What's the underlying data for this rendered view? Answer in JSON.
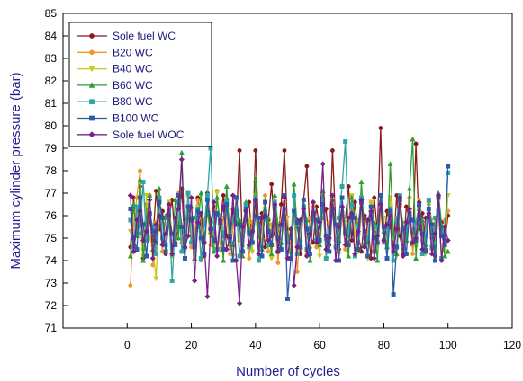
{
  "chart_data": {
    "type": "line",
    "title": "",
    "xlabel": "Number of cycles",
    "ylabel": "Maximum cylinder pressure (bar)",
    "xlim": [
      -20,
      120
    ],
    "ylim": [
      71,
      85
    ],
    "x_ticks": [
      0,
      20,
      40,
      60,
      80,
      100,
      120
    ],
    "y_ticks": [
      71,
      72,
      73,
      74,
      75,
      76,
      77,
      78,
      79,
      80,
      81,
      82,
      83,
      84,
      85
    ],
    "grid": false,
    "legend_position": "top-left",
    "x": [
      1,
      2,
      3,
      4,
      5,
      6,
      7,
      8,
      9,
      10,
      11,
      12,
      13,
      14,
      15,
      16,
      17,
      18,
      19,
      20,
      21,
      22,
      23,
      24,
      25,
      26,
      27,
      28,
      29,
      30,
      31,
      32,
      33,
      34,
      35,
      36,
      37,
      38,
      39,
      40,
      41,
      42,
      43,
      44,
      45,
      46,
      47,
      48,
      49,
      50,
      51,
      52,
      53,
      54,
      55,
      56,
      57,
      58,
      59,
      60,
      61,
      62,
      63,
      64,
      65,
      66,
      67,
      68,
      69,
      70,
      71,
      72,
      73,
      74,
      75,
      76,
      77,
      78,
      79,
      80,
      81,
      82,
      83,
      84,
      85,
      86,
      87,
      88,
      89,
      90,
      91,
      92,
      93,
      94,
      95,
      96,
      97,
      98,
      99,
      100
    ],
    "series": [
      {
        "name": "Sole fuel WC",
        "color": "#8b1a1a",
        "marker": "circle",
        "values": [
          74.6,
          76.8,
          75.2,
          77.3,
          74.1,
          76.5,
          75.8,
          74.9,
          77.1,
          75.4,
          76.2,
          74.3,
          75.9,
          76.7,
          74.8,
          75.5,
          77.2,
          74.6,
          76.1,
          75.3,
          74.9,
          76.8,
          75.6,
          74.2,
          77.0,
          75.7,
          76.4,
          74.5,
          75.8,
          76.9,
          75.1,
          74.7,
          76.3,
          75.6,
          78.9,
          74.4,
          75.9,
          76.6,
          74.8,
          78.9,
          75.3,
          76.1,
          74.6,
          75.8,
          77.4,
          75.2,
          74.9,
          76.5,
          78.9,
          75.4,
          74.6,
          76.2,
          75.8,
          74.3,
          76.7,
          78.2,
          75.1,
          74.8,
          76.4,
          75.5,
          75.9,
          76.3,
          74.7,
          78.9,
          75.6,
          74.5,
          76.1,
          75.8,
          77.3,
          74.9,
          76.6,
          75.2,
          74.4,
          76.0,
          75.7,
          74.1,
          76.8,
          75.3,
          79.9,
          74.8,
          76.2,
          75.5,
          74.6,
          76.9,
          75.1,
          74.3,
          76.4,
          75.8,
          74.7,
          79.2,
          75.4,
          76.1,
          74.5,
          76.6,
          75.0,
          74.2,
          76.3,
          75.7,
          74.8,
          76.0
        ]
      },
      {
        "name": "B20 WC",
        "color": "#f0962a",
        "marker": "circle",
        "values": [
          72.9,
          75.6,
          76.8,
          78.0,
          74.5,
          75.2,
          76.9,
          73.8,
          75.7,
          76.3,
          74.4,
          75.9,
          76.6,
          74.2,
          75.4,
          77.0,
          74.8,
          75.6,
          76.2,
          74.6,
          75.1,
          76.7,
          74.0,
          75.8,
          76.4,
          74.7,
          75.3,
          77.1,
          74.5,
          75.9,
          76.1,
          74.3,
          75.5,
          76.8,
          74.9,
          75.2,
          76.5,
          74.1,
          75.7,
          76.3,
          74.6,
          75.4,
          76.9,
          74.4,
          75.6,
          76.0,
          73.9,
          75.8,
          76.6,
          74.8,
          75.1,
          76.2,
          73.5,
          75.5,
          76.7,
          74.3,
          75.9,
          76.4,
          74.6,
          75.2,
          76.8,
          74.1,
          75.7,
          76.3,
          74.9,
          75.4,
          76.1,
          74.5,
          75.6,
          76.9,
          74.2,
          75.8,
          76.0,
          74.7,
          75.3,
          76.6,
          74.4,
          75.5,
          76.2,
          74.8,
          75.1,
          76.7,
          74.0,
          75.9,
          76.4,
          74.6,
          75.2,
          76.8,
          74.3,
          75.7,
          76.1,
          74.9,
          75.4,
          76.5,
          74.5,
          75.6,
          76.3,
          74.1,
          75.8,
          76.2
        ]
      },
      {
        "name": "B40 WC",
        "color": "#c8c81e",
        "marker": "triangle-down",
        "values": [
          75.3,
          74.8,
          76.1,
          75.5,
          74.2,
          76.9,
          75.0,
          74.6,
          73.2,
          76.3,
          75.8,
          74.4,
          76.6,
          75.2,
          74.9,
          76.0,
          75.6,
          74.1,
          76.8,
          75.3,
          74.7,
          76.4,
          75.9,
          74.3,
          76.2,
          75.1,
          74.8,
          77.0,
          75.4,
          74.5,
          76.5,
          75.7,
          74.2,
          76.7,
          75.0,
          74.6,
          76.1,
          75.8,
          74.4,
          76.9,
          75.3,
          74.9,
          76.3,
          75.6,
          74.1,
          76.6,
          75.2,
          74.7,
          76.0,
          75.9,
          74.3,
          76.8,
          75.4,
          74.8,
          76.2,
          75.1,
          74.5,
          76.5,
          75.7,
          74.2,
          76.4,
          75.0,
          74.9,
          76.7,
          75.5,
          74.3,
          76.1,
          75.8,
          74.6,
          76.9,
          75.2,
          74.4,
          76.3,
          75.6,
          74.1,
          76.6,
          75.3,
          74.7,
          76.0,
          75.9,
          74.5,
          76.8,
          75.1,
          74.2,
          76.4,
          75.7,
          74.8,
          76.2,
          75.0,
          74.6,
          76.7,
          75.4,
          74.3,
          76.5,
          75.8,
          74.9,
          76.1,
          75.5,
          74.4,
          76.9
        ]
      },
      {
        "name": "B60 WC",
        "color": "#2e9e2e",
        "marker": "triangle-up",
        "values": [
          74.2,
          76.5,
          75.1,
          77.6,
          74.0,
          75.8,
          76.9,
          74.5,
          75.3,
          77.2,
          74.8,
          76.0,
          75.6,
          74.3,
          76.7,
          75.0,
          78.8,
          74.6,
          75.9,
          76.4,
          74.1,
          75.5,
          77.0,
          74.9,
          76.2,
          75.3,
          74.4,
          76.8,
          75.7,
          74.0,
          77.3,
          75.2,
          74.7,
          76.1,
          75.8,
          74.2,
          76.6,
          75.4,
          74.9,
          77.6,
          75.1,
          74.5,
          76.3,
          75.9,
          74.3,
          76.9,
          75.6,
          74.8,
          76.0,
          75.2,
          74.1,
          77.4,
          75.5,
          74.6,
          76.5,
          75.8,
          74.0,
          76.2,
          75.3,
          74.7,
          77.1,
          75.0,
          74.4,
          76.7,
          75.6,
          74.9,
          76.1,
          75.4,
          74.2,
          76.8,
          75.9,
          74.5,
          77.5,
          75.1,
          74.8,
          76.4,
          75.7,
          74.0,
          76.9,
          75.3,
          74.6,
          78.3,
          75.2,
          74.3,
          76.6,
          75.5,
          74.9,
          77.2,
          79.4,
          74.1,
          76.3,
          75.8,
          74.7,
          76.0,
          75.4,
          74.4,
          77.0,
          75.6,
          74.2,
          74.4
        ]
      },
      {
        "name": "B80 WC",
        "color": "#2aa6a6",
        "marker": "square",
        "values": [
          75.8,
          74.6,
          76.4,
          75.2,
          77.5,
          74.9,
          76.1,
          75.5,
          74.3,
          76.8,
          75.0,
          74.7,
          76.2,
          73.1,
          75.7,
          76.6,
          74.4,
          75.3,
          77.0,
          74.8,
          75.9,
          76.3,
          74.1,
          75.6,
          76.9,
          79.0,
          75.4,
          74.5,
          76.0,
          75.1,
          76.7,
          74.9,
          75.8,
          76.2,
          74.2,
          75.5,
          76.5,
          74.6,
          75.3,
          76.8,
          74.0,
          75.9,
          76.1,
          74.7,
          75.2,
          76.6,
          74.4,
          75.6,
          76.3,
          74.8,
          75.0,
          76.9,
          74.3,
          75.7,
          76.4,
          74.5,
          75.4,
          76.0,
          74.9,
          75.8,
          76.7,
          74.1,
          75.3,
          76.2,
          74.6,
          75.9,
          77.3,
          79.3,
          75.1,
          76.5,
          74.2,
          75.6,
          76.8,
          74.7,
          75.0,
          76.1,
          74.4,
          75.5,
          76.6,
          74.9,
          75.2,
          76.3,
          74.0,
          75.8,
          76.9,
          74.5,
          75.4,
          76.0,
          74.8,
          75.7,
          76.4,
          74.3,
          75.1,
          76.7,
          74.6,
          75.9,
          76.2,
          74.1,
          75.3,
          77.9
        ]
      },
      {
        "name": "B100 WC",
        "color": "#2a5ca8",
        "marker": "square",
        "values": [
          76.3,
          75.0,
          74.5,
          76.8,
          75.6,
          74.2,
          76.1,
          75.3,
          74.8,
          76.6,
          75.9,
          74.4,
          76.0,
          75.2,
          74.7,
          76.9,
          75.5,
          74.1,
          76.4,
          75.8,
          74.6,
          76.2,
          75.0,
          74.3,
          76.7,
          75.4,
          74.9,
          76.1,
          75.7,
          74.5,
          76.5,
          75.1,
          74.0,
          76.8,
          75.6,
          74.4,
          76.3,
          75.2,
          74.8,
          76.0,
          75.9,
          74.2,
          76.6,
          75.3,
          74.7,
          76.4,
          75.0,
          74.5,
          76.9,
          72.3,
          74.1,
          76.2,
          75.7,
          74.6,
          76.7,
          75.4,
          74.3,
          76.1,
          75.8,
          74.9,
          76.5,
          75.1,
          74.4,
          76.3,
          75.6,
          74.0,
          76.8,
          75.2,
          74.7,
          76.0,
          75.9,
          74.5,
          76.6,
          75.3,
          74.2,
          76.4,
          75.0,
          74.8,
          76.9,
          75.5,
          74.1,
          76.2,
          72.5,
          74.6,
          76.7,
          75.4,
          74.3,
          76.1,
          75.8,
          74.9,
          76.5,
          75.2,
          74.4,
          76.3,
          75.6,
          74.0,
          76.8,
          75.1,
          74.7,
          78.2
        ]
      },
      {
        "name": "Sole fuel WOC",
        "color": "#7a1e8c",
        "marker": "diamond",
        "values": [
          76.9,
          74.4,
          75.8,
          76.2,
          74.9,
          75.3,
          76.7,
          74.1,
          75.6,
          76.0,
          74.7,
          75.2,
          76.5,
          74.3,
          75.9,
          76.3,
          78.5,
          74.6,
          75.1,
          76.8,
          73.1,
          75.7,
          76.1,
          74.8,
          72.4,
          75.4,
          76.6,
          74.2,
          75.8,
          76.4,
          74.5,
          75.0,
          76.9,
          74.0,
          72.1,
          75.5,
          76.2,
          74.7,
          75.3,
          76.7,
          74.3,
          75.9,
          76.0,
          74.9,
          75.1,
          76.5,
          74.4,
          75.6,
          76.8,
          74.1,
          75.4,
          72.9,
          74.6,
          75.8,
          76.3,
          74.2,
          75.2,
          76.6,
          74.8,
          75.7,
          78.3,
          74.5,
          75.0,
          76.9,
          74.0,
          75.5,
          76.4,
          74.7,
          75.9,
          76.1,
          74.3,
          75.3,
          76.7,
          74.6,
          75.8,
          76.2,
          74.1,
          75.1,
          76.5,
          74.9,
          75.6,
          76.0,
          74.4,
          75.4,
          76.8,
          74.2,
          75.7,
          76.3,
          74.8,
          75.0,
          76.6,
          74.5,
          75.9,
          76.1,
          74.3,
          75.2,
          76.9,
          74.0,
          75.5,
          74.9
        ]
      }
    ]
  }
}
